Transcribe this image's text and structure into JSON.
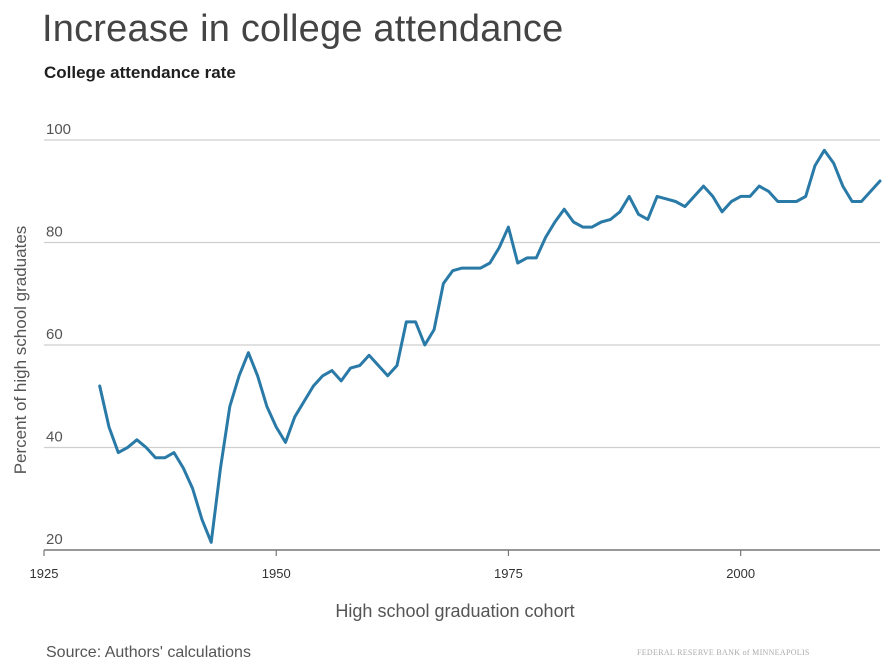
{
  "title": "Increase in college attendance",
  "subtitle": "College attendance rate",
  "source": "Source: Authors' calculations",
  "logo_text": "FEDERAL RESERVE BANK of MINNEAPOLIS",
  "colors": {
    "line": "#2a7aa8",
    "grid": "#cfcfcf",
    "text": "#444444"
  },
  "chart_data": {
    "type": "line",
    "title": "College attendance rate",
    "xlabel": "High school graduation cohort",
    "ylabel": "Percent of high school graduates",
    "xlim": [
      1925,
      2015
    ],
    "ylim": [
      20,
      100
    ],
    "xticks": [
      1925,
      1950,
      1975,
      2000
    ],
    "yticks": [
      20,
      40,
      60,
      80,
      100
    ],
    "grid": "horizontal",
    "series": [
      {
        "x": [
          1931,
          1932,
          1933,
          1934,
          1935,
          1936,
          1937,
          1938,
          1939,
          1940,
          1941,
          1942,
          1943,
          1944,
          1945,
          1946,
          1947,
          1948,
          1949,
          1950,
          1951,
          1952,
          1953,
          1954,
          1955,
          1956,
          1957,
          1958,
          1959,
          1960,
          1961,
          1962,
          1963,
          1964,
          1965,
          1966,
          1967,
          1968,
          1969,
          1970,
          1971,
          1972,
          1973,
          1974,
          1975,
          1976,
          1977,
          1978,
          1979,
          1980,
          1981,
          1982,
          1983,
          1984,
          1985,
          1986,
          1987,
          1988,
          1989,
          1990,
          1991,
          1992,
          1993,
          1994,
          1995,
          1996,
          1997,
          1998,
          1999,
          2000,
          2001,
          2002,
          2003,
          2004,
          2005,
          2006,
          2007,
          2008,
          2009,
          2010,
          2011,
          2012,
          2013,
          2014,
          2015
        ],
        "y": [
          52,
          44,
          39,
          40,
          41.5,
          40,
          38,
          38,
          39,
          36,
          32,
          26,
          21.5,
          36,
          48,
          54,
          58.5,
          54,
          48,
          44,
          41,
          46,
          49,
          52,
          54,
          55,
          53,
          55.5,
          56,
          58,
          56,
          54,
          56,
          64.5,
          64.5,
          60,
          63,
          72,
          74.5,
          75,
          75,
          75,
          76,
          79,
          83,
          76,
          77,
          77,
          81,
          84,
          86.5,
          84,
          83,
          83,
          84,
          84.5,
          86,
          89,
          85.5,
          84.5,
          89,
          88.5,
          88,
          87,
          89,
          91,
          89,
          86,
          88,
          89,
          89,
          91,
          90,
          88,
          88,
          88,
          89,
          95,
          98,
          95.5,
          91,
          88,
          88,
          90,
          92
        ]
      }
    ]
  }
}
